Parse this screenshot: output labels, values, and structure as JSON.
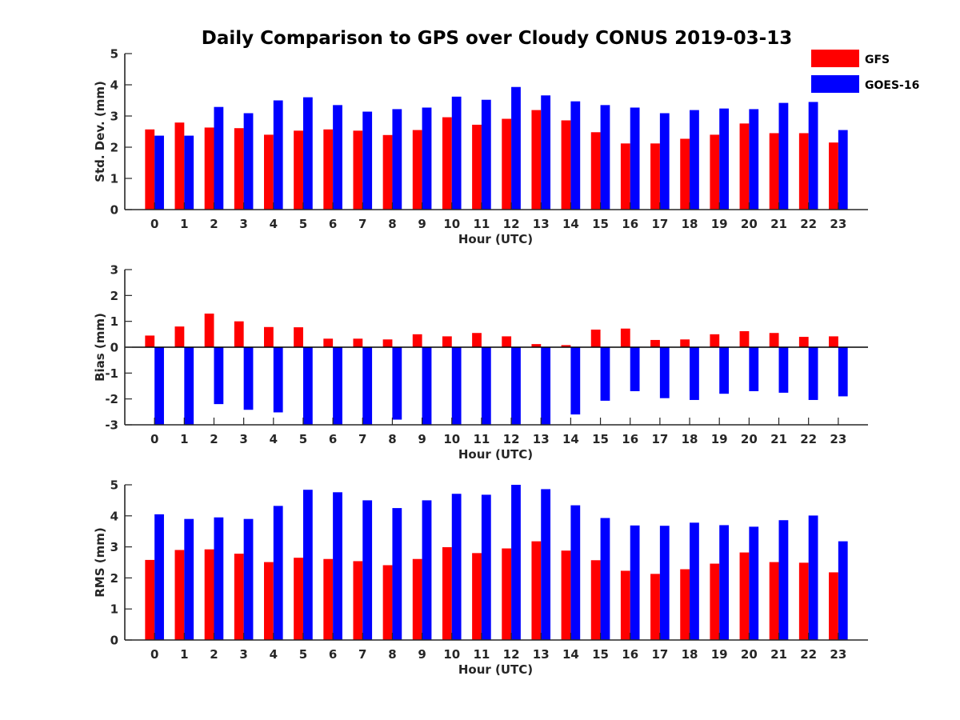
{
  "title": "Daily Comparison to GPS over Cloudy CONUS 2019-03-13",
  "colors": {
    "GFS": "#ff0000",
    "GOES-16": "#0000ff",
    "axis": "#262626"
  },
  "legend": {
    "placement": "top-right",
    "entries": [
      "GFS",
      "GOES-16"
    ]
  },
  "chart_data": [
    {
      "type": "bar",
      "xlabel": "Hour (UTC)",
      "ylabel": "Std. Dev. (mm)",
      "ylim": [
        0,
        5
      ],
      "yticks": [
        0,
        1,
        2,
        3,
        4,
        5
      ],
      "grid": false,
      "categories": [
        "0",
        "1",
        "2",
        "3",
        "4",
        "5",
        "6",
        "7",
        "8",
        "9",
        "10",
        "11",
        "12",
        "13",
        "14",
        "15",
        "16",
        "17",
        "18",
        "19",
        "20",
        "21",
        "22",
        "23"
      ],
      "series": [
        {
          "name": "GFS",
          "values": [
            2.57,
            2.79,
            2.63,
            2.61,
            2.4,
            2.53,
            2.57,
            2.53,
            2.39,
            2.55,
            2.96,
            2.72,
            2.91,
            3.19,
            2.86,
            2.48,
            2.12,
            2.12,
            2.27,
            2.4,
            2.76,
            2.45,
            2.45,
            2.15
          ]
        },
        {
          "name": "GOES-16",
          "values": [
            2.37,
            2.37,
            3.29,
            3.09,
            3.5,
            3.6,
            3.35,
            3.14,
            3.22,
            3.27,
            3.62,
            3.52,
            3.93,
            3.66,
            3.47,
            3.35,
            3.27,
            3.09,
            3.19,
            3.24,
            3.22,
            3.42,
            3.45,
            2.55
          ]
        }
      ]
    },
    {
      "type": "bar",
      "xlabel": "Hour (UTC)",
      "ylabel": "Bias (mm)",
      "ylim": [
        -3,
        3
      ],
      "yticks": [
        -3,
        -2,
        -1,
        0,
        1,
        2,
        3
      ],
      "grid": false,
      "categories": [
        "0",
        "1",
        "2",
        "3",
        "4",
        "5",
        "6",
        "7",
        "8",
        "9",
        "10",
        "11",
        "12",
        "13",
        "14",
        "15",
        "16",
        "17",
        "18",
        "19",
        "20",
        "21",
        "22",
        "23"
      ],
      "series": [
        {
          "name": "GFS",
          "values": [
            0.45,
            0.8,
            1.3,
            1.0,
            0.78,
            0.77,
            0.33,
            0.33,
            0.3,
            0.5,
            0.42,
            0.55,
            0.42,
            0.12,
            0.08,
            0.68,
            0.72,
            0.28,
            0.3,
            0.5,
            0.62,
            0.55,
            0.4,
            0.42
          ]
        },
        {
          "name": "GOES-16",
          "values": [
            -3.2,
            -3.2,
            -2.2,
            -2.42,
            -2.52,
            -3.2,
            -3.2,
            -3.2,
            -2.8,
            -3.2,
            -3.2,
            -3.2,
            -3.2,
            -3.2,
            -2.6,
            -2.07,
            -1.7,
            -1.97,
            -2.04,
            -1.8,
            -1.7,
            -1.76,
            -2.04,
            -1.9
          ]
        }
      ]
    },
    {
      "type": "bar",
      "xlabel": "Hour (UTC)",
      "ylabel": "RMS (mm)",
      "ylim": [
        0,
        5
      ],
      "yticks": [
        0,
        1,
        2,
        3,
        4,
        5
      ],
      "grid": false,
      "categories": [
        "0",
        "1",
        "2",
        "3",
        "4",
        "5",
        "6",
        "7",
        "8",
        "9",
        "10",
        "11",
        "12",
        "13",
        "14",
        "15",
        "16",
        "17",
        "18",
        "19",
        "20",
        "21",
        "22",
        "23"
      ],
      "series": [
        {
          "name": "GFS",
          "values": [
            2.58,
            2.9,
            2.92,
            2.78,
            2.51,
            2.65,
            2.61,
            2.54,
            2.41,
            2.61,
            2.99,
            2.8,
            2.95,
            3.18,
            2.88,
            2.57,
            2.23,
            2.13,
            2.28,
            2.46,
            2.82,
            2.51,
            2.49,
            2.18
          ]
        },
        {
          "name": "GOES-16",
          "values": [
            4.05,
            3.9,
            3.95,
            3.9,
            4.32,
            4.84,
            4.76,
            4.5,
            4.25,
            4.5,
            4.71,
            4.68,
            5.0,
            4.86,
            4.34,
            3.93,
            3.69,
            3.68,
            3.78,
            3.7,
            3.65,
            3.86,
            4.01,
            3.18
          ]
        }
      ]
    }
  ]
}
